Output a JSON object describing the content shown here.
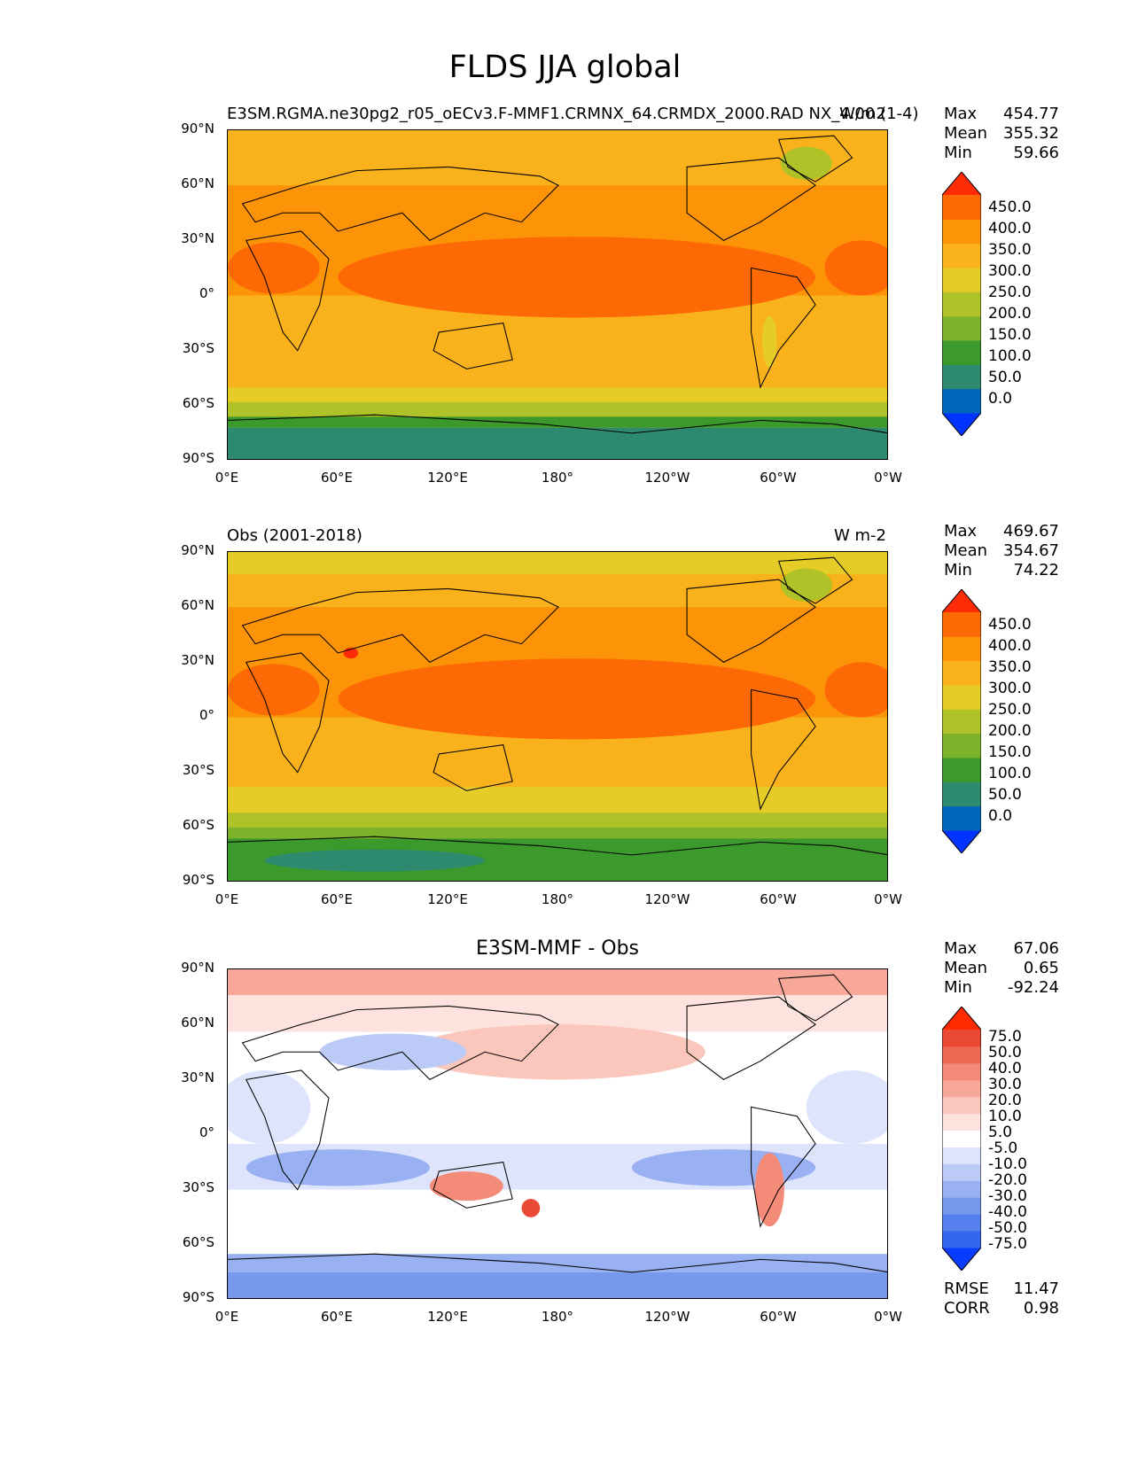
{
  "title": "FLDS JJA global",
  "panels": [
    {
      "left_title": "E3SM.RGMA.ne30pg2_r05_oECv3.F-MMF1.CRMNX_64.CRMDX_2000.RAD NX_4.00 (1-4)",
      "right_title": "W/m2",
      "center_title": "",
      "stats": [
        {
          "label": "Max",
          "value": "454.77"
        },
        {
          "label": "Mean",
          "value": "355.32"
        },
        {
          "label": "Min",
          "value": "59.66"
        }
      ],
      "colorbar_labels": [
        "450.0",
        "400.0",
        "350.0",
        "300.0",
        "250.0",
        "200.0",
        "150.0",
        "100.0",
        "50.0",
        "0.0"
      ]
    },
    {
      "left_title": "Obs (2001-2018)",
      "right_title": "W m-2",
      "center_title": "",
      "stats": [
        {
          "label": "Max",
          "value": "469.67"
        },
        {
          "label": "Mean",
          "value": "354.67"
        },
        {
          "label": "Min",
          "value": "74.22"
        }
      ],
      "colorbar_labels": [
        "450.0",
        "400.0",
        "350.0",
        "300.0",
        "250.0",
        "200.0",
        "150.0",
        "100.0",
        "50.0",
        "0.0"
      ]
    },
    {
      "left_title": "",
      "right_title": "",
      "center_title": "E3SM-MMF - Obs",
      "stats": [
        {
          "label": "Max",
          "value": "67.06"
        },
        {
          "label": "Mean",
          "value": "0.65"
        },
        {
          "label": "Min",
          "value": "-92.24"
        }
      ],
      "colorbar_labels": [
        "75.0",
        "50.0",
        "40.0",
        "30.0",
        "20.0",
        "10.0",
        "5.0",
        "-5.0",
        "-10.0",
        "-20.0",
        "-30.0",
        "-40.0",
        "-50.0",
        "-75.0"
      ],
      "footer": [
        {
          "label": "RMSE",
          "value": "11.47"
        },
        {
          "label": "CORR",
          "value": "0.98"
        }
      ]
    }
  ],
  "lat_ticks": [
    "90°N",
    "60°N",
    "30°N",
    "0°",
    "30°S",
    "60°S",
    "90°S"
  ],
  "lon_ticks": [
    "0°E",
    "60°E",
    "120°E",
    "180°",
    "120°W",
    "60°W",
    "0°W"
  ],
  "colors": {
    "abs_scale": [
      "#0033ff",
      "#0066bb",
      "#2e8a6e",
      "#3c9a2c",
      "#7db32a",
      "#afc227",
      "#e6cc26",
      "#f9b21b",
      "#fd9307",
      "#fd6a05",
      "#fe2c06"
    ],
    "diff_scale": [
      "#0a3cff",
      "#3366ee",
      "#5580ee",
      "#7898ee",
      "#99b0f2",
      "#bccaf7",
      "#dde4fb",
      "#ffffff",
      "#fde2de",
      "#fbc6bc",
      "#f8a898",
      "#f48a78",
      "#ef6a55",
      "#ea4a34",
      "#ff2a00"
    ]
  }
}
